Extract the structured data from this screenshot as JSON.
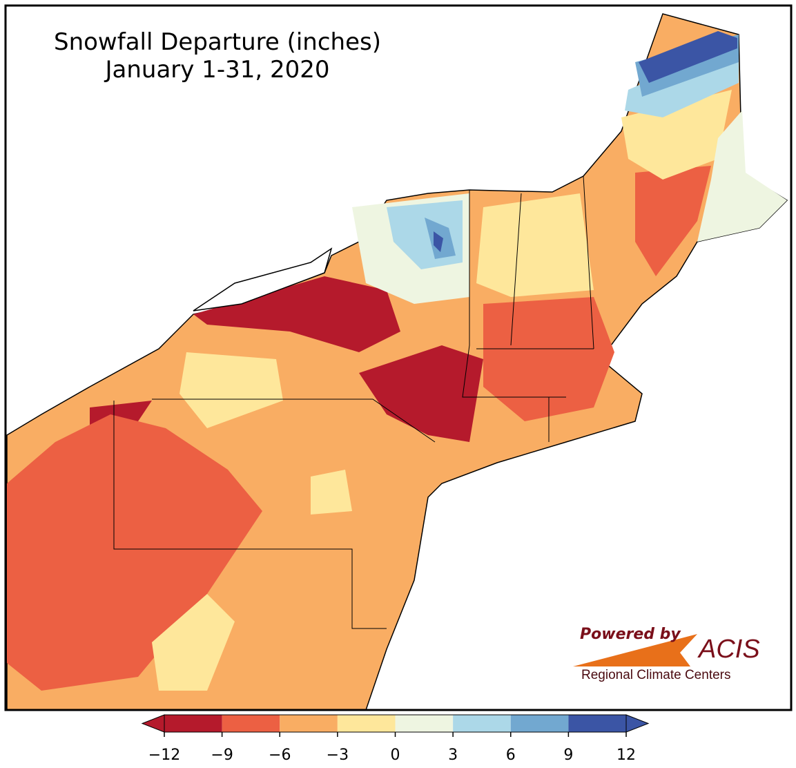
{
  "title": {
    "line1": "Snowfall Departure (inches)",
    "line2": "January 1-31, 2020"
  },
  "colorbar": {
    "ticks": [
      {
        "value": -12,
        "label": "−12"
      },
      {
        "value": -9,
        "label": "−9"
      },
      {
        "value": -6,
        "label": "−6"
      },
      {
        "value": -3,
        "label": "−3"
      },
      0,
      3,
      6,
      9,
      12
    ],
    "colors": [
      "#b51a2c",
      "#ec6043",
      "#f9ad63",
      "#fee79b",
      "#eef5e1",
      "#acd8e8",
      "#72a8d0",
      "#3b55a5"
    ]
  },
  "logo": {
    "tagline": "Powered by",
    "brand": "ACIS",
    "org": "Regional Climate Centers"
  }
}
